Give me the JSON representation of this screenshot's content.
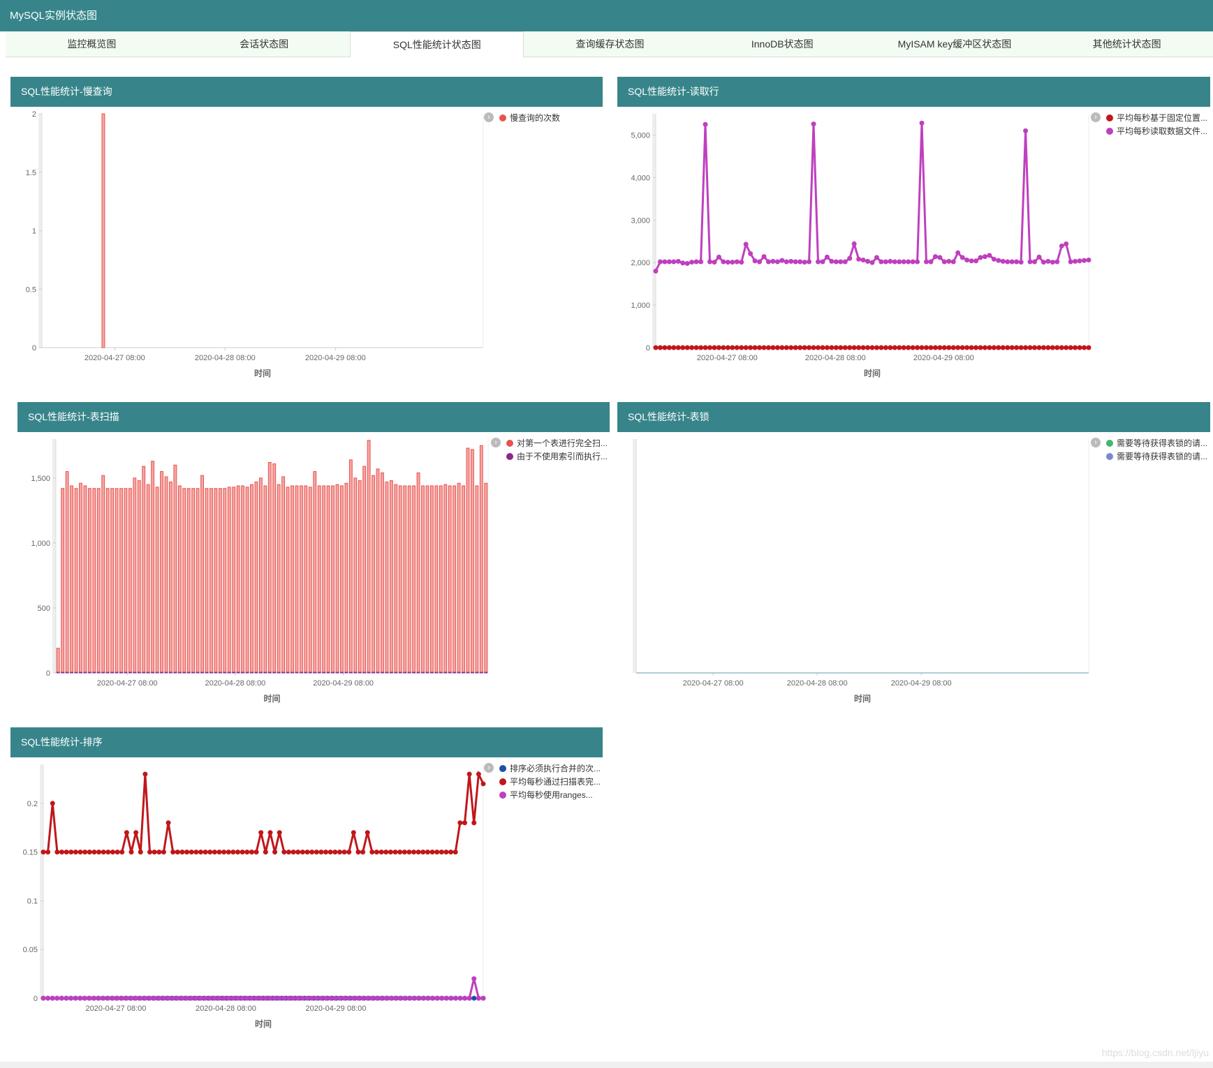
{
  "header": {
    "title": "MySQL实例状态图"
  },
  "tabs": [
    {
      "label": "监控概览图",
      "active": false
    },
    {
      "label": "会话状态图",
      "active": false
    },
    {
      "label": "SQL性能统计状态图",
      "active": true
    },
    {
      "label": "查询缓存状态图",
      "active": false
    },
    {
      "label": "InnoDB状态图",
      "active": false
    },
    {
      "label": "MyISAM key缓冲区状态图",
      "active": false
    },
    {
      "label": "其他统计状态图",
      "active": false
    }
  ],
  "watermark": "https://blog.csdn.net/ljiyu",
  "chart_data": [
    {
      "title": "SQL性能统计-慢查询",
      "type": "bar",
      "xlabel": "时间",
      "ylabel": "",
      "x_ticks": [
        "2020-04-27 08:00",
        "2020-04-28 08:00",
        "2020-04-29 08:00"
      ],
      "ylim": [
        0,
        2
      ],
      "y_ticks": [
        0,
        0.5,
        1,
        1.5,
        2
      ],
      "y_tick_labels": [
        "0",
        "0.5",
        "1",
        "1.5",
        "2"
      ],
      "grid": false,
      "legend_position": "right",
      "series": [
        {
          "name": "慢查询的次数",
          "color": "#e8524f",
          "values": [
            0,
            0,
            0,
            0,
            0,
            0,
            0,
            0,
            0,
            0,
            0,
            0,
            0,
            2,
            0,
            0,
            0,
            0,
            0,
            0,
            0,
            0,
            0,
            0,
            0,
            0,
            0,
            0,
            0,
            0,
            0,
            0,
            0,
            0,
            0,
            0,
            0,
            0,
            0,
            0,
            0,
            0,
            0,
            0,
            0,
            0,
            0,
            0,
            0,
            0,
            0,
            0,
            0,
            0,
            0,
            0,
            0,
            0,
            0,
            0,
            0,
            0,
            0,
            0,
            0,
            0,
            0,
            0,
            0,
            0,
            0,
            0,
            0,
            0,
            0,
            0,
            0,
            0,
            0,
            0,
            0,
            0,
            0,
            0,
            0,
            0,
            0,
            0,
            0,
            0,
            0,
            0,
            0,
            0,
            0,
            0,
            0
          ]
        }
      ]
    },
    {
      "title": "SQL性能统计-读取行",
      "type": "line",
      "xlabel": "时间",
      "ylabel": "",
      "x_ticks": [
        "2020-04-27 08:00",
        "2020-04-28 08:00",
        "2020-04-29 08:00"
      ],
      "ylim": [
        0,
        5500
      ],
      "y_ticks": [
        0,
        1000,
        2000,
        3000,
        4000,
        5000
      ],
      "y_tick_labels": [
        "0",
        "1,000",
        "2,000",
        "3,000",
        "4,000",
        "5,000"
      ],
      "grid": false,
      "legend_position": "right",
      "series": [
        {
          "name": "平均每秒基于固定位置...",
          "color": "#c0171b",
          "values": [
            0,
            0,
            0,
            0,
            0,
            0,
            0,
            0,
            0,
            0,
            0,
            0,
            0,
            0,
            0,
            0,
            0,
            0,
            0,
            0,
            0,
            0,
            0,
            0,
            0,
            0,
            0,
            0,
            0,
            0,
            0,
            0,
            0,
            0,
            0,
            0,
            0,
            0,
            0,
            0,
            0,
            0,
            0,
            0,
            0,
            0,
            0,
            0,
            0,
            0,
            0,
            0,
            0,
            0,
            0,
            0,
            0,
            0,
            0,
            0,
            0,
            0,
            0,
            0,
            0,
            0,
            0,
            0,
            0,
            0,
            0,
            0,
            0,
            0,
            0,
            0,
            0,
            0,
            0,
            0,
            0,
            0,
            0,
            0,
            0,
            0,
            0,
            0,
            0,
            0,
            0,
            0,
            0,
            0,
            0,
            0,
            0
          ]
        },
        {
          "name": "平均每秒读取数据文件...",
          "color": "#bf3fbf",
          "values": [
            1800,
            2020,
            2020,
            2020,
            2020,
            2030,
            1990,
            1980,
            2010,
            2020,
            2020,
            5250,
            2020,
            2010,
            2130,
            2020,
            2010,
            2010,
            2020,
            2010,
            2430,
            2210,
            2040,
            2020,
            2140,
            2020,
            2030,
            2020,
            2050,
            2020,
            2030,
            2020,
            2020,
            2010,
            2020,
            5260,
            2020,
            2020,
            2130,
            2030,
            2020,
            2020,
            2020,
            2100,
            2440,
            2080,
            2060,
            2030,
            2000,
            2120,
            2020,
            2020,
            2030,
            2020,
            2020,
            2020,
            2020,
            2020,
            2020,
            5280,
            2020,
            2020,
            2140,
            2120,
            2020,
            2030,
            2020,
            2230,
            2120,
            2060,
            2040,
            2040,
            2120,
            2140,
            2170,
            2080,
            2050,
            2030,
            2020,
            2020,
            2020,
            2010,
            5100,
            2020,
            2020,
            2130,
            2010,
            2030,
            2010,
            2020,
            2390,
            2440,
            2020,
            2030,
            2040,
            2050,
            2060
          ]
        }
      ]
    },
    {
      "title": "SQL性能统计-表扫描",
      "type": "bar",
      "xlabel": "时间",
      "ylabel": "",
      "x_ticks": [
        "2020-04-27 08:00",
        "2020-04-28 08:00",
        "2020-04-29 08:00"
      ],
      "ylim": [
        0,
        1800
      ],
      "y_ticks": [
        0,
        500,
        1000,
        1500
      ],
      "y_tick_labels": [
        "0",
        "500",
        "1,000",
        "1,500"
      ],
      "grid": false,
      "legend_position": "right",
      "series": [
        {
          "name": "对第一个表进行完全扫...",
          "color": "#e8524f",
          "values": [
            190,
            1420,
            1550,
            1440,
            1420,
            1460,
            1440,
            1420,
            1420,
            1420,
            1520,
            1420,
            1420,
            1420,
            1420,
            1420,
            1420,
            1500,
            1480,
            1590,
            1450,
            1630,
            1430,
            1550,
            1510,
            1470,
            1600,
            1440,
            1420,
            1420,
            1420,
            1420,
            1520,
            1420,
            1420,
            1420,
            1420,
            1420,
            1430,
            1430,
            1440,
            1440,
            1430,
            1450,
            1470,
            1500,
            1440,
            1620,
            1610,
            1450,
            1510,
            1430,
            1440,
            1440,
            1440,
            1440,
            1430,
            1550,
            1440,
            1440,
            1440,
            1440,
            1450,
            1440,
            1460,
            1640,
            1500,
            1480,
            1590,
            1790,
            1520,
            1570,
            1540,
            1470,
            1480,
            1450,
            1440,
            1440,
            1440,
            1440,
            1540,
            1440,
            1440,
            1440,
            1440,
            1440,
            1450,
            1440,
            1440,
            1460,
            1440,
            1730,
            1720,
            1440,
            1750,
            1460
          ]
        },
        {
          "name": "由于不使用索引而执行...",
          "color": "#8b2a8b",
          "values": [
            5,
            5,
            5,
            5,
            5,
            5,
            5,
            5,
            5,
            5,
            5,
            5,
            5,
            5,
            5,
            5,
            5,
            5,
            5,
            5,
            5,
            5,
            5,
            5,
            5,
            5,
            5,
            5,
            5,
            5,
            5,
            5,
            5,
            5,
            5,
            5,
            5,
            5,
            5,
            5,
            5,
            5,
            5,
            5,
            5,
            5,
            5,
            5,
            5,
            5,
            5,
            5,
            5,
            5,
            5,
            5,
            5,
            5,
            5,
            5,
            5,
            5,
            5,
            5,
            5,
            5,
            5,
            5,
            5,
            5,
            5,
            5,
            5,
            5,
            5,
            5,
            5,
            5,
            5,
            5,
            5,
            5,
            5,
            5,
            5,
            5,
            5,
            5,
            5,
            5,
            5,
            5,
            5,
            5,
            5,
            5
          ]
        }
      ]
    },
    {
      "title": "SQL性能统计-表锁",
      "type": "line",
      "xlabel": "时间",
      "ylabel": "",
      "x_ticks": [
        "2020-04-27 08:00",
        "2020-04-28 08:00",
        "2020-04-29 08:00"
      ],
      "ylim": [
        0,
        1
      ],
      "y_ticks": [],
      "y_tick_labels": [],
      "grid": false,
      "legend_position": "right",
      "series": [
        {
          "name": "需要等待获得表锁的请...",
          "color": "#3fb96b",
          "values": [
            0,
            0,
            0,
            0,
            0,
            0,
            0,
            0,
            0,
            0,
            0,
            0,
            0,
            0,
            0,
            0,
            0,
            0,
            0,
            0,
            0,
            0,
            0,
            0,
            0,
            0,
            0,
            0,
            0,
            0,
            0,
            0,
            0,
            0,
            0,
            0,
            0,
            0,
            0,
            0,
            0,
            0,
            0,
            0,
            0,
            0,
            0,
            0,
            0,
            0,
            0,
            0,
            0,
            0,
            0,
            0,
            0,
            0,
            0,
            0,
            0,
            0,
            0,
            0,
            0,
            0,
            0,
            0,
            0,
            0,
            0,
            0,
            0,
            0,
            0,
            0,
            0,
            0,
            0,
            0,
            0,
            0,
            0,
            0,
            0,
            0,
            0,
            0,
            0,
            0,
            0,
            0,
            0,
            0,
            0,
            0,
            0
          ]
        },
        {
          "name": "需要等待获得表锁的请...",
          "color": "#7b86d6",
          "values": [
            0,
            0,
            0,
            0,
            0,
            0,
            0,
            0,
            0,
            0,
            0,
            0,
            0,
            0,
            0,
            0,
            0,
            0,
            0,
            0,
            0,
            0,
            0,
            0,
            0,
            0,
            0,
            0,
            0,
            0,
            0,
            0,
            0,
            0,
            0,
            0,
            0,
            0,
            0,
            0,
            0,
            0,
            0,
            0,
            0,
            0,
            0,
            0,
            0,
            0,
            0,
            0,
            0,
            0,
            0,
            0,
            0,
            0,
            0,
            0,
            0,
            0,
            0,
            0,
            0,
            0,
            0,
            0,
            0,
            0,
            0,
            0,
            0,
            0,
            0,
            0,
            0,
            0,
            0,
            0,
            0,
            0,
            0,
            0,
            0,
            0,
            0,
            0,
            0,
            0,
            0,
            0,
            0,
            0,
            0,
            0,
            0
          ]
        }
      ]
    },
    {
      "title": "SQL性能统计-排序",
      "type": "line",
      "xlabel": "时间",
      "ylabel": "",
      "x_ticks": [
        "2020-04-27 08:00",
        "2020-04-28 08:00",
        "2020-04-29 08:00"
      ],
      "ylim": [
        0,
        0.24
      ],
      "y_ticks": [
        0,
        0.05,
        0.1,
        0.15,
        0.2
      ],
      "y_tick_labels": [
        "0",
        "0.05",
        "0.1",
        "0.15",
        "0.2"
      ],
      "grid": false,
      "legend_position": "right",
      "series": [
        {
          "name": "排序必须执行合并的次...",
          "color": "#1f4ea8",
          "values": [
            0,
            0,
            0,
            0,
            0,
            0,
            0,
            0,
            0,
            0,
            0,
            0,
            0,
            0,
            0,
            0,
            0,
            0,
            0,
            0,
            0,
            0,
            0,
            0,
            0,
            0,
            0,
            0,
            0,
            0,
            0,
            0,
            0,
            0,
            0,
            0,
            0,
            0,
            0,
            0,
            0,
            0,
            0,
            0,
            0,
            0,
            0,
            0,
            0,
            0,
            0,
            0,
            0,
            0,
            0,
            0,
            0,
            0,
            0,
            0,
            0,
            0,
            0,
            0,
            0,
            0,
            0,
            0,
            0,
            0,
            0,
            0,
            0,
            0,
            0,
            0,
            0,
            0,
            0,
            0,
            0,
            0,
            0,
            0,
            0,
            0,
            0,
            0,
            0,
            0,
            0,
            0,
            0,
            0,
            0,
            0,
            0
          ]
        },
        {
          "name": "平均每秒通过扫描表完...",
          "color": "#c0171b",
          "values": [
            0.15,
            0.15,
            0.2,
            0.15,
            0.15,
            0.15,
            0.15,
            0.15,
            0.15,
            0.15,
            0.15,
            0.15,
            0.15,
            0.15,
            0.15,
            0.15,
            0.15,
            0.15,
            0.17,
            0.15,
            0.17,
            0.15,
            0.23,
            0.15,
            0.15,
            0.15,
            0.15,
            0.18,
            0.15,
            0.15,
            0.15,
            0.15,
            0.15,
            0.15,
            0.15,
            0.15,
            0.15,
            0.15,
            0.15,
            0.15,
            0.15,
            0.15,
            0.15,
            0.15,
            0.15,
            0.15,
            0.15,
            0.17,
            0.15,
            0.17,
            0.15,
            0.17,
            0.15,
            0.15,
            0.15,
            0.15,
            0.15,
            0.15,
            0.15,
            0.15,
            0.15,
            0.15,
            0.15,
            0.15,
            0.15,
            0.15,
            0.15,
            0.17,
            0.15,
            0.15,
            0.17,
            0.15,
            0.15,
            0.15,
            0.15,
            0.15,
            0.15,
            0.15,
            0.15,
            0.15,
            0.15,
            0.15,
            0.15,
            0.15,
            0.15,
            0.15,
            0.15,
            0.15,
            0.15,
            0.15,
            0.18,
            0.18,
            0.23,
            0.18,
            0.23,
            0.22
          ]
        },
        {
          "name": "平均每秒使用ranges...",
          "color": "#bf3fbf",
          "values": [
            0,
            0,
            0,
            0,
            0,
            0,
            0,
            0,
            0,
            0,
            0,
            0,
            0,
            0,
            0,
            0,
            0,
            0,
            0,
            0,
            0,
            0,
            0,
            0,
            0,
            0,
            0,
            0,
            0,
            0,
            0,
            0,
            0,
            0,
            0,
            0,
            0,
            0,
            0,
            0,
            0,
            0,
            0,
            0,
            0,
            0,
            0,
            0,
            0,
            0,
            0,
            0,
            0,
            0,
            0,
            0,
            0,
            0,
            0,
            0,
            0,
            0,
            0,
            0,
            0,
            0,
            0,
            0,
            0,
            0,
            0,
            0,
            0,
            0,
            0,
            0,
            0,
            0,
            0,
            0,
            0,
            0,
            0,
            0,
            0,
            0,
            0,
            0,
            0,
            0,
            0,
            0,
            0,
            0.02,
            0,
            0
          ]
        }
      ]
    }
  ]
}
